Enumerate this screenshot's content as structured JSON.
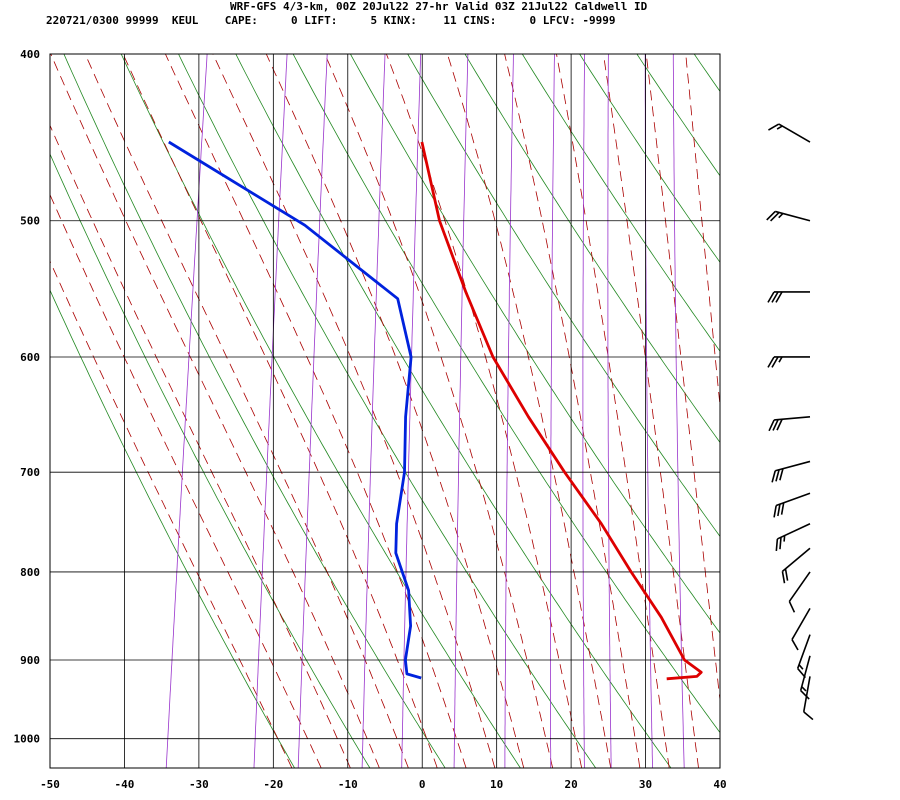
{
  "header": {
    "line1": "WRF-GFS 4/3-km, 00Z 20Jul22 27-hr Valid 03Z 21Jul22 Caldwell ID",
    "line2": "220721/0300 99999  KEUL    CAPE:     0 LIFT:     5 KINX:    11 CINS:     0 LFCV: -9999"
  },
  "chart_data": {
    "type": "line",
    "chart_kind": "skew-T log-P sounding",
    "x_axis": {
      "min": -50,
      "max": 40,
      "ticks": [
        -50,
        -40,
        -30,
        -20,
        -10,
        0,
        10,
        20,
        30,
        40
      ],
      "units": "deg C"
    },
    "y_axis": {
      "scale": "log",
      "top": 400,
      "bottom": 1040,
      "ticks": [
        400,
        500,
        600,
        700,
        800,
        900,
        1000
      ],
      "units": "hPa"
    },
    "grid": true,
    "series": [
      {
        "role": "temperature",
        "color": "#dd0000",
        "points": [
          {
            "p": 450,
            "t": -13
          },
          {
            "p": 500,
            "t": -9
          },
          {
            "p": 550,
            "t": -4
          },
          {
            "p": 600,
            "t": 1
          },
          {
            "p": 650,
            "t": 7
          },
          {
            "p": 700,
            "t": 13
          },
          {
            "p": 750,
            "t": 19
          },
          {
            "p": 800,
            "t": 24
          },
          {
            "p": 850,
            "t": 29
          },
          {
            "p": 900,
            "t": 33
          },
          {
            "p": 915,
            "t": 35.5
          },
          {
            "p": 920,
            "t": 35
          },
          {
            "p": 923,
            "t": 31
          }
        ]
      },
      {
        "role": "dewpoint",
        "color": "#0022dd",
        "points": [
          {
            "p": 450,
            "t": -47
          },
          {
            "p": 503,
            "t": -27
          },
          {
            "p": 555,
            "t": -13
          },
          {
            "p": 600,
            "t": -10
          },
          {
            "p": 650,
            "t": -9.5
          },
          {
            "p": 700,
            "t": -8.5
          },
          {
            "p": 750,
            "t": -8.5
          },
          {
            "p": 780,
            "t": -8
          },
          {
            "p": 820,
            "t": -5.5
          },
          {
            "p": 860,
            "t": -4.5
          },
          {
            "p": 900,
            "t": -4.5
          },
          {
            "p": 917,
            "t": -4
          },
          {
            "p": 922,
            "t": -2
          }
        ]
      }
    ],
    "background_lines": {
      "dry_adiabat_color": "#228822",
      "moist_adiabat_color": "#aa0000",
      "mixing_ratio_color": "#9933cc"
    },
    "wind_barbs": [
      {
        "p": 450,
        "dir": 300,
        "kt": 15
      },
      {
        "p": 500,
        "dir": 285,
        "kt": 25
      },
      {
        "p": 550,
        "dir": 270,
        "kt": 30
      },
      {
        "p": 600,
        "dir": 270,
        "kt": 25
      },
      {
        "p": 650,
        "dir": 265,
        "kt": 30
      },
      {
        "p": 690,
        "dir": 255,
        "kt": 30
      },
      {
        "p": 720,
        "dir": 250,
        "kt": 30
      },
      {
        "p": 750,
        "dir": 245,
        "kt": 25
      },
      {
        "p": 775,
        "dir": 230,
        "kt": 20
      },
      {
        "p": 800,
        "dir": 215,
        "kt": 10
      },
      {
        "p": 840,
        "dir": 210,
        "kt": 10
      },
      {
        "p": 870,
        "dir": 200,
        "kt": 15
      },
      {
        "p": 895,
        "dir": 195,
        "kt": 15
      },
      {
        "p": 920,
        "dir": 190,
        "kt": 10
      }
    ]
  }
}
